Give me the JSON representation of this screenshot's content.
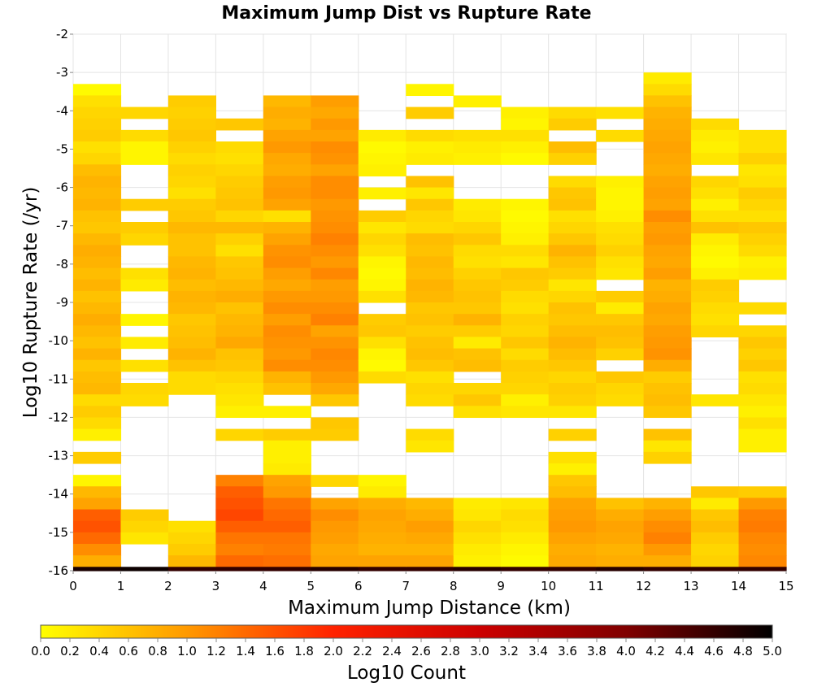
{
  "chart_data": {
    "type": "heatmap",
    "title": "Maximum Jump Dist vs Rupture Rate",
    "xlabel": "Maximum Jump Distance (km)",
    "ylabel": "Log10 Rupture Rate (/yr)",
    "colorbar_label": "Log10 Count",
    "xlim": [
      0,
      15
    ],
    "ylim": [
      -16,
      -2
    ],
    "x_ticks": [
      0,
      1,
      2,
      3,
      4,
      5,
      6,
      7,
      8,
      9,
      10,
      11,
      12,
      13,
      14,
      15
    ],
    "y_ticks": [
      -2,
      -3,
      -4,
      -5,
      -6,
      -7,
      -8,
      -9,
      -10,
      -11,
      -12,
      -13,
      -14,
      -15,
      -16
    ],
    "color_range": [
      0.0,
      5.0
    ],
    "color_ticks": [
      "0.0",
      "0.2",
      "0.4",
      "0.6",
      "0.8",
      "1.0",
      "1.2",
      "1.4",
      "1.6",
      "1.8",
      "2.0",
      "2.2",
      "2.4",
      "2.6",
      "2.8",
      "3.0",
      "3.2",
      "3.4",
      "3.6",
      "3.8",
      "4.0",
      "4.2",
      "4.4",
      "4.6",
      "4.8",
      "5.0"
    ],
    "colormap": [
      "#ffff00",
      "#ff9900",
      "#ff2200",
      "#cc0000",
      "#800000",
      "#000000"
    ],
    "grid": true,
    "x_bin_width": 1,
    "y_bin_height": 0.3,
    "y_top": -3.0,
    "y_bin_count": 44,
    "rows": [
      {
        "x": 0,
        "values": [
          null,
          0.05,
          0.3,
          0.4,
          0.45,
          0.5,
          0.3,
          0.4,
          0.65,
          0.75,
          0.7,
          0.75,
          0.6,
          0.55,
          0.7,
          0.8,
          0.75,
          0.65,
          0.75,
          0.6,
          0.7,
          0.8,
          0.7,
          0.6,
          0.75,
          0.55,
          0.65,
          0.7,
          0.35,
          0.5,
          0.35,
          0.15,
          null,
          0.5,
          null,
          0.1,
          0.7,
          0.9,
          1.5,
          1.6,
          1.4,
          1.1,
          0.8,
          4.8
        ]
      },
      {
        "x": 1,
        "values": [
          null,
          null,
          null,
          0.4,
          null,
          0.35,
          0.1,
          0.1,
          null,
          null,
          null,
          0.5,
          null,
          0.5,
          0.4,
          null,
          null,
          0.3,
          0.2,
          null,
          null,
          0.1,
          null,
          0.2,
          null,
          0.3,
          null,
          0.4,
          0.35,
          null,
          null,
          null,
          null,
          null,
          null,
          null,
          null,
          null,
          0.5,
          0.4,
          0.25,
          null,
          null,
          4.9
        ]
      },
      {
        "x": 2,
        "values": [
          null,
          null,
          0.5,
          0.45,
          0.5,
          0.55,
          0.45,
          0.35,
          0.45,
          0.4,
          0.3,
          0.5,
          0.55,
          0.7,
          0.6,
          0.6,
          0.7,
          0.75,
          0.65,
          0.75,
          0.7,
          0.55,
          0.6,
          0.65,
          0.75,
          0.6,
          0.35,
          0.35,
          null,
          null,
          null,
          null,
          null,
          null,
          null,
          null,
          null,
          null,
          null,
          0.3,
          0.4,
          0.5,
          0.7,
          4.6
        ]
      },
      {
        "x": 3,
        "values": [
          null,
          null,
          null,
          null,
          0.55,
          null,
          0.35,
          0.3,
          0.4,
          0.5,
          0.55,
          0.6,
          0.4,
          0.7,
          0.45,
          0.3,
          0.55,
          0.6,
          0.7,
          0.8,
          0.6,
          0.7,
          0.75,
          0.85,
          0.6,
          0.55,
          0.4,
          0.3,
          0.25,
          0.15,
          null,
          0.4,
          null,
          null,
          null,
          1.2,
          1.5,
          1.6,
          1.7,
          1.5,
          1.3,
          1.2,
          1.4,
          4.6
        ]
      },
      {
        "x": 4,
        "values": [
          null,
          null,
          0.7,
          0.8,
          0.75,
          0.9,
          1.0,
          0.85,
          0.8,
          0.95,
          1.0,
          0.9,
          0.3,
          0.75,
          0.9,
          1.05,
          1.1,
          0.95,
          0.85,
          1.0,
          1.1,
          0.95,
          1.1,
          1.05,
          1.0,
          1.1,
          0.75,
          0.6,
          null,
          0.15,
          null,
          0.5,
          0.15,
          0.15,
          0.2,
          0.9,
          1.0,
          1.3,
          1.4,
          1.5,
          1.3,
          1.25,
          1.35,
          4.6
        ]
      },
      {
        "x": 5,
        "values": [
          null,
          null,
          0.95,
          0.85,
          1.0,
          0.9,
          1.1,
          1.05,
          0.9,
          1.1,
          1.1,
          1.0,
          1.05,
          1.1,
          1.2,
          1.1,
          1.0,
          1.15,
          0.95,
          1.0,
          1.1,
          1.2,
          0.9,
          1.05,
          1.15,
          1.1,
          1.0,
          0.85,
          0.55,
          null,
          0.55,
          0.5,
          null,
          null,
          null,
          0.4,
          null,
          0.9,
          1.1,
          1.0,
          0.95,
          0.85,
          0.9,
          4.7
        ]
      },
      {
        "x": 6,
        "values": [
          null,
          null,
          null,
          null,
          null,
          0.2,
          0.05,
          0.1,
          0.15,
          null,
          0.15,
          null,
          0.5,
          0.25,
          0.4,
          0.3,
          0.1,
          0.05,
          0.1,
          0.3,
          null,
          0.5,
          0.55,
          0.3,
          0.1,
          0.05,
          0.35,
          null,
          null,
          null,
          null,
          null,
          null,
          null,
          null,
          0.1,
          0.2,
          0.8,
          0.9,
          0.85,
          0.8,
          0.75,
          0.9,
          4.6
        ]
      },
      {
        "x": 7,
        "values": [
          null,
          0.1,
          null,
          0.5,
          null,
          0.35,
          0.15,
          0.2,
          null,
          0.6,
          0.25,
          0.55,
          0.4,
          0.35,
          0.65,
          0.6,
          0.7,
          0.65,
          0.75,
          0.7,
          0.55,
          0.6,
          0.5,
          0.6,
          0.65,
          0.55,
          0.3,
          0.4,
          0.35,
          null,
          null,
          0.35,
          0.25,
          null,
          null,
          null,
          null,
          0.7,
          0.8,
          0.95,
          0.85,
          0.75,
          0.9,
          4.6
        ]
      },
      {
        "x": 8,
        "values": [
          null,
          null,
          0.15,
          null,
          null,
          0.3,
          0.2,
          0.15,
          null,
          null,
          null,
          0.2,
          0.25,
          0.4,
          0.55,
          0.35,
          0.3,
          0.45,
          0.55,
          0.6,
          0.55,
          0.75,
          0.5,
          0.2,
          0.6,
          0.65,
          null,
          0.4,
          0.55,
          0.3,
          null,
          null,
          null,
          null,
          null,
          null,
          null,
          0.2,
          0.25,
          0.4,
          0.3,
          0.2,
          0.15,
          4.7
        ]
      },
      {
        "x": 9,
        "values": [
          null,
          null,
          null,
          0.15,
          0.1,
          0.3,
          0.15,
          0.05,
          null,
          null,
          null,
          0.1,
          0.05,
          0.1,
          0.15,
          0.35,
          0.25,
          0.55,
          0.5,
          0.35,
          0.3,
          0.45,
          0.4,
          0.55,
          0.35,
          0.5,
          0.45,
          0.4,
          0.15,
          0.25,
          null,
          null,
          null,
          null,
          null,
          null,
          null,
          0.25,
          0.35,
          0.3,
          0.2,
          0.1,
          0.05,
          4.6
        ]
      },
      {
        "x": 10,
        "values": [
          null,
          null,
          null,
          0.35,
          0.5,
          null,
          0.65,
          0.45,
          null,
          0.35,
          0.55,
          0.6,
          0.3,
          0.4,
          0.55,
          0.75,
          0.6,
          0.5,
          0.25,
          0.4,
          0.6,
          0.55,
          0.65,
          0.75,
          0.65,
          0.55,
          0.4,
          0.5,
          0.45,
          0.25,
          null,
          0.45,
          null,
          0.3,
          0.15,
          0.55,
          0.65,
          0.9,
          0.95,
          1.0,
          0.9,
          0.8,
          0.85,
          4.6
        ]
      },
      {
        "x": 11,
        "values": [
          null,
          null,
          null,
          0.3,
          null,
          0.35,
          null,
          null,
          null,
          0.15,
          0.1,
          0.1,
          0.15,
          0.3,
          0.35,
          0.45,
          0.3,
          0.25,
          null,
          0.5,
          0.2,
          0.55,
          0.65,
          0.6,
          0.45,
          null,
          0.55,
          0.4,
          0.35,
          null,
          null,
          null,
          null,
          null,
          null,
          null,
          null,
          0.6,
          0.8,
          0.9,
          0.85,
          0.75,
          0.8,
          4.7
        ]
      },
      {
        "x": 12,
        "values": [
          0.2,
          0.35,
          0.6,
          0.75,
          0.8,
          0.85,
          0.9,
          0.85,
          0.8,
          0.9,
          0.95,
          0.9,
          1.1,
          0.95,
          1.0,
          0.9,
          0.85,
          0.95,
          0.75,
          0.8,
          0.9,
          0.85,
          0.95,
          1.0,
          1.05,
          0.8,
          0.5,
          0.6,
          0.65,
          0.55,
          null,
          0.6,
          0.25,
          0.45,
          null,
          null,
          null,
          0.75,
          0.95,
          1.1,
          1.2,
          1.0,
          0.8,
          4.6
        ]
      },
      {
        "x": 13,
        "values": [
          null,
          null,
          null,
          null,
          0.35,
          0.2,
          0.15,
          0.25,
          null,
          0.4,
          0.3,
          0.15,
          0.3,
          0.6,
          0.2,
          0.1,
          0.05,
          0.15,
          0.5,
          0.45,
          0.35,
          0.3,
          0.4,
          null,
          null,
          null,
          null,
          null,
          0.25,
          null,
          null,
          null,
          null,
          null,
          null,
          null,
          0.55,
          0.2,
          0.55,
          0.65,
          0.5,
          0.4,
          0.45,
          4.6
        ]
      },
      {
        "x": 14,
        "values": [
          null,
          null,
          null,
          null,
          null,
          0.3,
          0.3,
          0.45,
          0.25,
          0.3,
          0.5,
          0.4,
          0.3,
          0.55,
          0.45,
          0.35,
          0.15,
          0.2,
          null,
          null,
          0.35,
          null,
          0.4,
          0.55,
          0.45,
          0.55,
          0.3,
          0.35,
          0.25,
          0.15,
          0.3,
          0.15,
          0.15,
          null,
          null,
          null,
          0.5,
          1.0,
          1.2,
          1.25,
          1.15,
          1.1,
          1.15,
          4.6
        ]
      }
    ]
  }
}
